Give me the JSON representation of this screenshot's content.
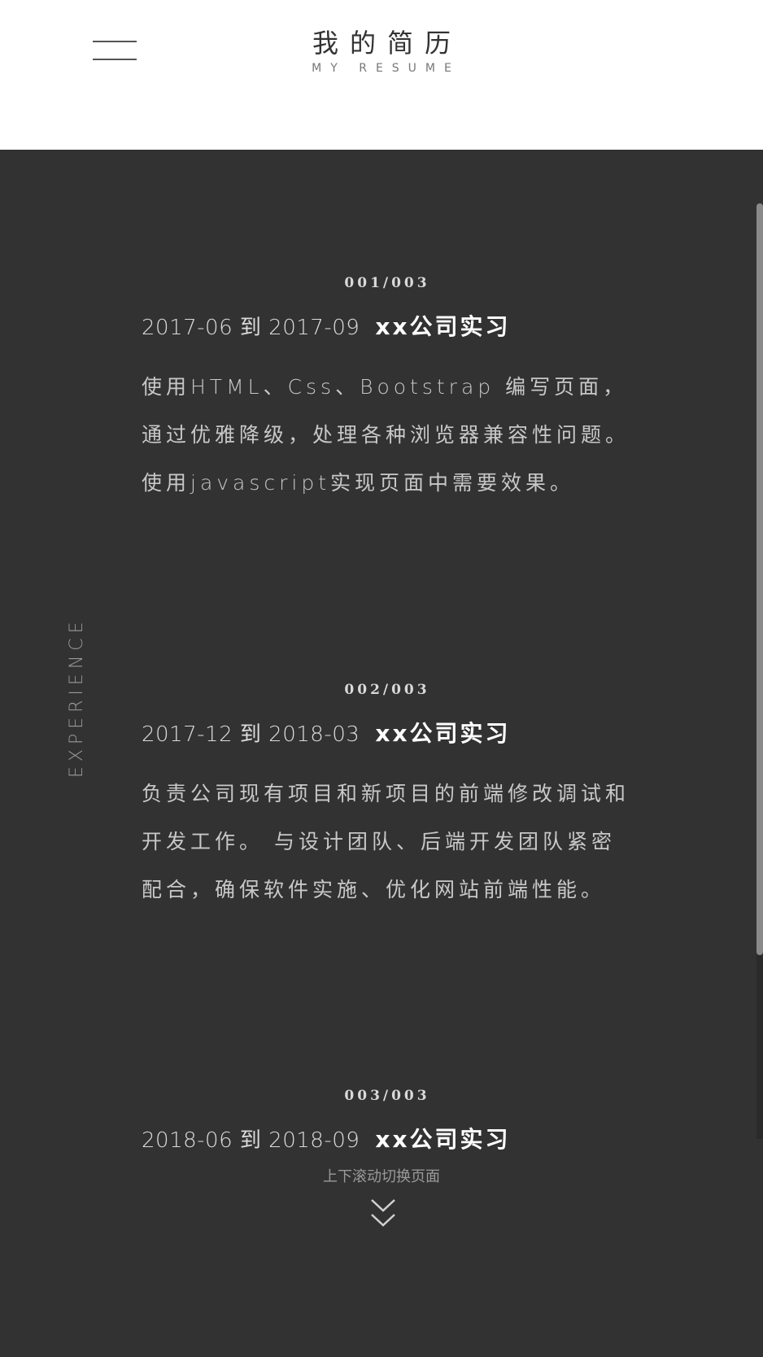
{
  "header": {
    "title": "我的简历",
    "subtitle": "MY RESUME",
    "menu_icon": "hamburger-menu-icon"
  },
  "sidebar": {
    "section_label": "EXPERIENCE"
  },
  "experience": [
    {
      "index": "001/003",
      "dates": "2017-06 到 2017-09",
      "company": "xx公司实习",
      "description": "使用HTML、Css、Bootstrap 编写页面，通过优雅降级，处理各种浏览器兼容性问题。 使用javascript实现页面中需要效果。"
    },
    {
      "index": "002/003",
      "dates": "2017-12 到 2018-03",
      "company": "xx公司实习",
      "description": "负责公司现有项目和新项目的前端修改调试和开发工作。 与设计团队、后端开发团队紧密配合，确保软件实施、优化网站前端性能。"
    },
    {
      "index": "003/003",
      "dates": "2018-06 到 2018-09",
      "company": "xx公司实习",
      "description": ""
    }
  ],
  "footer": {
    "scroll_hint": "上下滚动切换页面",
    "arrow_icon": "double-chevron-down-icon"
  },
  "colors": {
    "header_bg": "#ffffff",
    "main_bg": "#323232",
    "accent_text": "#ffffff",
    "muted_text": "#c8c8c8"
  }
}
